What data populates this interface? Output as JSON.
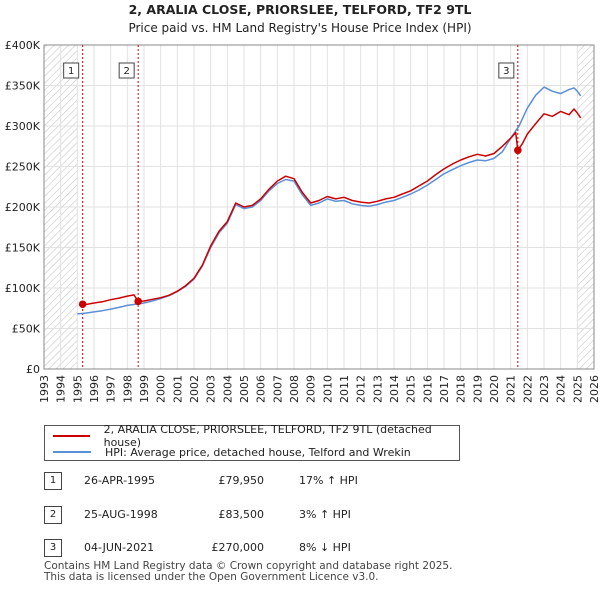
{
  "chart_data": {
    "type": "line",
    "title": "2, ARALIA CLOSE, PRIORSLEE, TELFORD, TF2 9TL",
    "subtitle": "Price paid vs. HM Land Registry's House Price Index (HPI)",
    "xlabel": "",
    "ylabel": "",
    "xlim": [
      1993,
      2026
    ],
    "ylim": [
      0,
      400000
    ],
    "x_ticks": [
      1993,
      1994,
      1995,
      1996,
      1997,
      1998,
      1999,
      2000,
      2001,
      2002,
      2003,
      2004,
      2005,
      2006,
      2007,
      2008,
      2009,
      2010,
      2011,
      2012,
      2013,
      2014,
      2015,
      2016,
      2017,
      2018,
      2019,
      2020,
      2021,
      2022,
      2023,
      2024,
      2025,
      2026
    ],
    "y_ticks": [
      0,
      50000,
      100000,
      150000,
      200000,
      250000,
      300000,
      350000,
      400000
    ],
    "y_tick_labels": [
      "£0",
      "£50K",
      "£100K",
      "£150K",
      "£200K",
      "£250K",
      "£300K",
      "£350K",
      "£400K"
    ],
    "grid": true,
    "hatched_before": 1995.0,
    "hatched_after": 2025.0,
    "series": [
      {
        "name": "2, ARALIA CLOSE, PRIORSLEE, TELFORD, TF2 9TL (detached house)",
        "color": "#cc0000",
        "x": [
          1995.32,
          1995.6,
          1996.0,
          1996.5,
          1997.0,
          1997.5,
          1998.0,
          1998.4,
          1998.65,
          1999.0,
          1999.5,
          2000.0,
          2000.5,
          2001.0,
          2001.5,
          2002.0,
          2002.5,
          2003.0,
          2003.5,
          2004.0,
          2004.5,
          2005.0,
          2005.5,
          2006.0,
          2006.5,
          2007.0,
          2007.5,
          2008.0,
          2008.5,
          2009.0,
          2009.5,
          2010.0,
          2010.5,
          2011.0,
          2011.5,
          2012.0,
          2012.5,
          2013.0,
          2013.5,
          2014.0,
          2014.5,
          2015.0,
          2015.5,
          2016.0,
          2016.5,
          2017.0,
          2017.5,
          2018.0,
          2018.5,
          2019.0,
          2019.5,
          2020.0,
          2020.5,
          2021.0,
          2021.3,
          2021.43,
          2021.7,
          2022.0,
          2022.5,
          2023.0,
          2023.5,
          2024.0,
          2024.5,
          2024.8,
          2025.0,
          2025.2
        ],
        "values": [
          79950,
          80000,
          81500,
          83000,
          85500,
          87500,
          90000,
          91500,
          83500,
          84000,
          86000,
          88000,
          91000,
          96000,
          103000,
          112000,
          128000,
          152000,
          170000,
          182000,
          205000,
          200000,
          202000,
          210000,
          222000,
          232000,
          238000,
          235000,
          218000,
          205000,
          208000,
          213000,
          210000,
          212000,
          208000,
          206000,
          205000,
          207000,
          210000,
          212000,
          216000,
          220000,
          226000,
          232000,
          240000,
          247000,
          253000,
          258000,
          262000,
          265000,
          263000,
          266000,
          275000,
          285000,
          292000,
          270000,
          278000,
          290000,
          303000,
          315000,
          312000,
          318000,
          314000,
          321000,
          316000,
          310000
        ]
      },
      {
        "name": "HPI: Average price, detached house, Telford and Wrekin",
        "color": "#5b8fd6",
        "x": [
          1995.0,
          1995.5,
          1996.0,
          1996.5,
          1997.0,
          1997.5,
          1998.0,
          1998.5,
          1999.0,
          1999.5,
          2000.0,
          2000.5,
          2001.0,
          2001.5,
          2002.0,
          2002.5,
          2003.0,
          2003.5,
          2004.0,
          2004.5,
          2005.0,
          2005.5,
          2006.0,
          2006.5,
          2007.0,
          2007.5,
          2008.0,
          2008.5,
          2009.0,
          2009.5,
          2010.0,
          2010.5,
          2011.0,
          2011.5,
          2012.0,
          2012.5,
          2013.0,
          2013.5,
          2014.0,
          2014.5,
          2015.0,
          2015.5,
          2016.0,
          2016.5,
          2017.0,
          2017.5,
          2018.0,
          2018.5,
          2019.0,
          2019.5,
          2020.0,
          2020.5,
          2021.0,
          2021.5,
          2022.0,
          2022.5,
          2023.0,
          2023.5,
          2024.0,
          2024.5,
          2024.8,
          2025.0,
          2025.2
        ],
        "values": [
          68000,
          69000,
          70500,
          72000,
          74000,
          76000,
          78500,
          80000,
          81500,
          84000,
          87000,
          90500,
          95500,
          102000,
          111000,
          127000,
          150000,
          168000,
          180000,
          203000,
          198000,
          200000,
          208000,
          220000,
          229000,
          234000,
          232000,
          215000,
          202000,
          205000,
          210000,
          207000,
          208000,
          204000,
          202000,
          201000,
          203000,
          206000,
          208000,
          212000,
          216000,
          221000,
          227000,
          234000,
          241000,
          246000,
          251000,
          255000,
          258000,
          257000,
          260000,
          268000,
          285000,
          300000,
          322000,
          338000,
          348000,
          343000,
          340000,
          345000,
          347000,
          343000,
          337000
        ]
      }
    ],
    "sale_markers": [
      {
        "label": "1",
        "x": 1995.32,
        "value": 79950
      },
      {
        "label": "2",
        "x": 1998.65,
        "value": 83500
      },
      {
        "label": "3",
        "x": 2021.43,
        "value": 270000
      }
    ]
  },
  "legend": {
    "items": [
      {
        "label": "2, ARALIA CLOSE, PRIORSLEE, TELFORD, TF2 9TL (detached house)",
        "color": "#cc0000"
      },
      {
        "label": "HPI: Average price, detached house, Telford and Wrekin",
        "color": "#5b8fd6"
      }
    ]
  },
  "sales": [
    {
      "num": "1",
      "date": "26-APR-1995",
      "price": "£79,950",
      "hpi": "17% ↑ HPI"
    },
    {
      "num": "2",
      "date": "25-AUG-1998",
      "price": "£83,500",
      "hpi": "3% ↑ HPI"
    },
    {
      "num": "3",
      "date": "04-JUN-2021",
      "price": "£270,000",
      "hpi": "8% ↓ HPI"
    }
  ],
  "footer": {
    "line1": "Contains HM Land Registry data © Crown copyright and database right 2025.",
    "line2": "This data is licensed under the Open Government Licence v3.0."
  }
}
